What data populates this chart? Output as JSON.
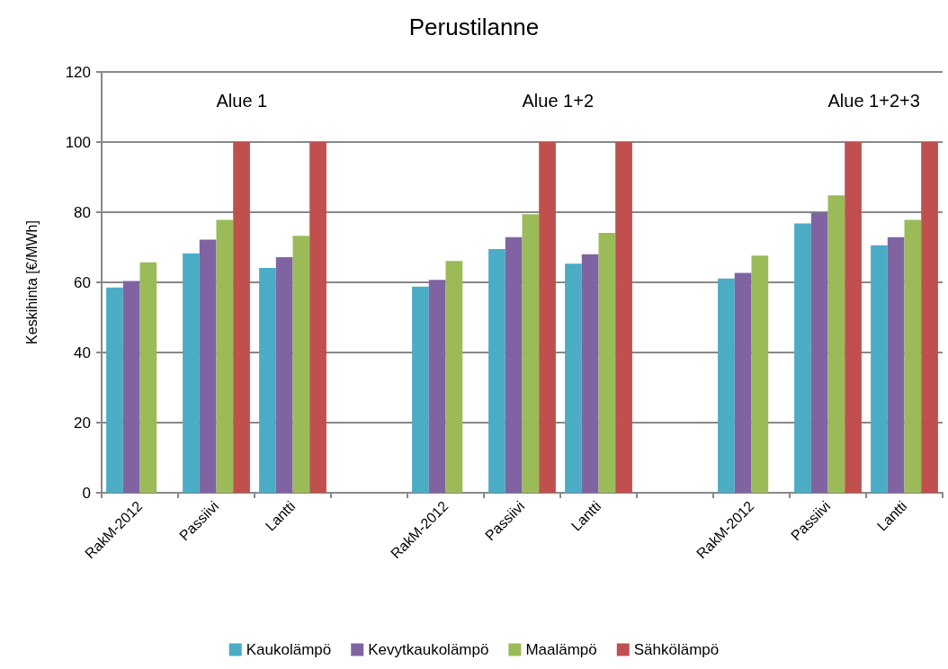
{
  "chart_data": {
    "type": "bar",
    "title": "Perustilanne",
    "ylabel": "Keskihinta [€/MWh]",
    "categories": [
      "RakM-2012",
      "Passiivi",
      "Lantti",
      null,
      "RakM-2012",
      "Passiivi",
      "Lantti",
      null,
      "RakM-2012",
      "Passiivi",
      "Lantti"
    ],
    "series": [
      {
        "name": "Kaukolämpö",
        "color": "#4bacc6",
        "values": [
          58.5,
          68.3,
          64.1,
          null,
          58.8,
          69.5,
          65.3,
          null,
          61.1,
          76.8,
          70.6
        ]
      },
      {
        "name": "Kevytkaukolämpö",
        "color": "#8064a2",
        "values": [
          60.4,
          72.2,
          67.2,
          null,
          60.7,
          72.9,
          68.0,
          null,
          62.7,
          79.9,
          72.9
        ]
      },
      {
        "name": "Maalämpö",
        "color": "#9bbb59",
        "values": [
          65.7,
          77.8,
          73.3,
          null,
          66.1,
          79.4,
          74.1,
          null,
          67.6,
          84.8,
          77.8
        ]
      },
      {
        "name": "Sähkölämpö",
        "color": "#c0504d",
        "values": [
          null,
          100,
          100,
          null,
          null,
          100,
          100,
          null,
          null,
          100,
          100
        ]
      }
    ],
    "ylim": [
      0,
      120
    ],
    "yticks": [
      0,
      20,
      40,
      60,
      80,
      100,
      120
    ],
    "grid": "y",
    "legend": "bottom",
    "annotations": [
      "Alue 1",
      "Alue 1+2",
      "Alue 1+2+3"
    ]
  }
}
